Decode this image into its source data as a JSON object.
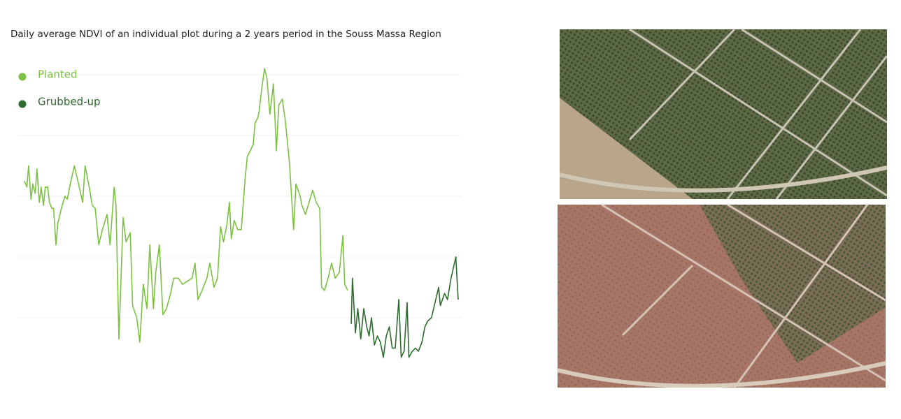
{
  "chart_data": {
    "type": "line",
    "title": "Daily average NDVI of an individual  plot during a 2 years period in the Souss Massa Region",
    "xlim": [
      0,
      730
    ],
    "ylim": [
      -0.2,
      1.0
    ],
    "yticks": [
      0,
      0.2,
      0.4,
      0.6,
      0.8
    ],
    "grid": true,
    "legend": "upper left",
    "series": [
      {
        "name": "Planted",
        "color": "#7cc142",
        "x": [
          0,
          4,
          7,
          11,
          14,
          18,
          21,
          25,
          28,
          32,
          35,
          39,
          42,
          46,
          49,
          53,
          56,
          62,
          68,
          72,
          77,
          84,
          91,
          98,
          102,
          109,
          114,
          119,
          125,
          131,
          139,
          144,
          151,
          154,
          159,
          166,
          171,
          178,
          182,
          189,
          194,
          200,
          206,
          211,
          217,
          221,
          227,
          233,
          239,
          246,
          251,
          259,
          266,
          274,
          282,
          287,
          292,
          299,
          307,
          312,
          319,
          325,
          330,
          335,
          341,
          345,
          348,
          353,
          359,
          365,
          371,
          375,
          380,
          385,
          388,
          393,
          395,
          399,
          404,
          408,
          413,
          419,
          424,
          428,
          434,
          439,
          446,
          453,
          457,
          464,
          467,
          473,
          479,
          485,
          491,
          497,
          500,
          505,
          511,
          517,
          523,
          530,
          536,
          539,
          544
        ],
        "values": [
          0.45,
          0.43,
          0.5,
          0.39,
          0.44,
          0.41,
          0.49,
          0.38,
          0.43,
          0.37,
          0.43,
          0.43,
          0.38,
          0.36,
          0.36,
          0.24,
          0.31,
          0.36,
          0.4,
          0.39,
          0.44,
          0.5,
          0.44,
          0.38,
          0.5,
          0.43,
          0.37,
          0.36,
          0.24,
          0.29,
          0.34,
          0.24,
          0.43,
          0.37,
          -0.07,
          0.33,
          0.25,
          0.28,
          0.04,
          0.0,
          -0.08,
          0.11,
          0.03,
          0.24,
          0.03,
          0.15,
          0.24,
          0.01,
          0.03,
          0.08,
          0.13,
          0.13,
          0.11,
          0.12,
          0.13,
          0.18,
          0.06,
          0.09,
          0.13,
          0.18,
          0.1,
          0.13,
          0.3,
          0.25,
          0.31,
          0.38,
          0.26,
          0.32,
          0.29,
          0.29,
          0.45,
          0.53,
          0.55,
          0.57,
          0.64,
          0.66,
          0.68,
          0.75,
          0.82,
          0.79,
          0.67,
          0.77,
          0.55,
          0.7,
          0.72,
          0.65,
          0.51,
          0.29,
          0.44,
          0.4,
          0.37,
          0.34,
          0.38,
          0.42,
          0.38,
          0.36,
          0.1,
          0.09,
          0.13,
          0.18,
          0.13,
          0.15,
          0.27,
          0.11,
          0.09
        ]
      },
      {
        "name": "Grubbed-up",
        "color": "#2e6b2e",
        "x": [
          550,
          552,
          557,
          561,
          566,
          571,
          576,
          580,
          584,
          589,
          594,
          599,
          604,
          609,
          614,
          619,
          624,
          630,
          634,
          639,
          644,
          647,
          653,
          658,
          663,
          669,
          674,
          679,
          685,
          691,
          697,
          700,
          707,
          712,
          718,
          726,
          730
        ],
        "values": [
          -0.02,
          0.13,
          -0.05,
          0.03,
          -0.07,
          0.03,
          -0.03,
          -0.06,
          0.0,
          -0.09,
          -0.06,
          -0.08,
          -0.13,
          -0.06,
          -0.03,
          -0.1,
          -0.1,
          0.06,
          -0.13,
          -0.11,
          0.05,
          -0.13,
          -0.11,
          -0.1,
          -0.11,
          -0.08,
          -0.03,
          -0.01,
          0.0,
          0.05,
          0.1,
          0.04,
          0.08,
          0.06,
          0.13,
          0.2,
          0.06
        ]
      }
    ]
  }
}
